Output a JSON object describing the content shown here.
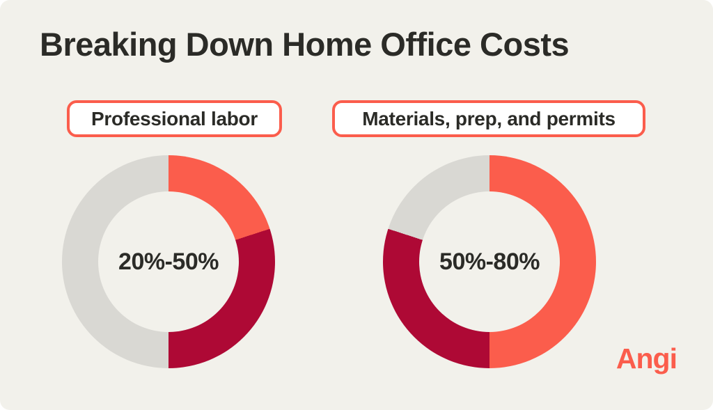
{
  "title": "Breaking Down Home Office Costs",
  "brand": {
    "logo_text": "Angi"
  },
  "colors": {
    "page_background": "#FFFFFF",
    "canvas_background": "#F2F1EB",
    "coral": "#FB5D4C",
    "crimson": "#AE0935",
    "gray": "#D9D8D3",
    "text_dark": "#2B2B27",
    "pill_background": "#FFFFFF",
    "pill_border": "#FB5D4C"
  },
  "chart_data": [
    {
      "type": "pie",
      "style": "donut",
      "title": "Professional labor",
      "center_label": "20%-50%",
      "start_angle_deg": 0,
      "direction": "clockwise",
      "segments": [
        {
          "label": "coral segment",
          "value": 20,
          "color": "#FB5D4C"
        },
        {
          "label": "crimson segment",
          "value": 30,
          "color": "#AE0935"
        },
        {
          "label": "gray segment",
          "value": 50,
          "color": "#D9D8D3"
        }
      ]
    },
    {
      "type": "pie",
      "style": "donut",
      "title": "Materials, prep, and permits",
      "center_label": "50%-80%",
      "start_angle_deg": 0,
      "direction": "clockwise",
      "segments": [
        {
          "label": "coral segment",
          "value": 50,
          "color": "#FB5D4C"
        },
        {
          "label": "crimson segment",
          "value": 30,
          "color": "#AE0935"
        },
        {
          "label": "gray segment",
          "value": 20,
          "color": "#D9D8D3"
        }
      ]
    }
  ]
}
